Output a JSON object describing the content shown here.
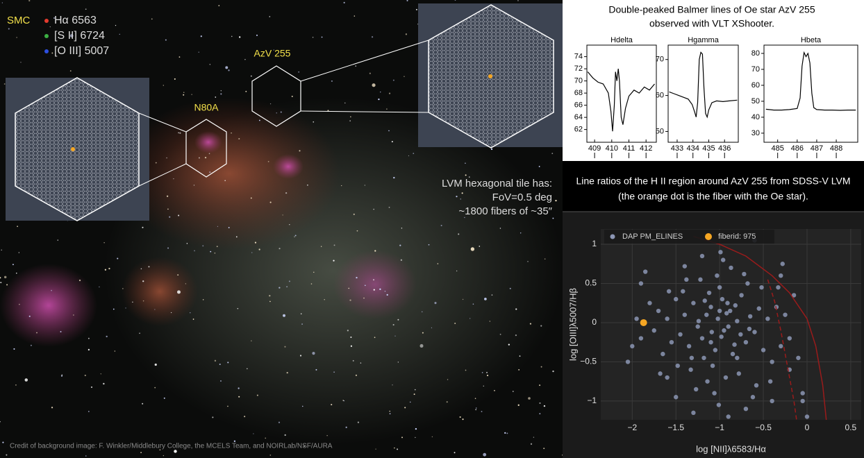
{
  "image": {
    "label": "SMC",
    "legend": [
      {
        "name": "Hα 6563",
        "color": "#e33b2e"
      },
      {
        "name": "[S II] 6724",
        "color": "#3cb043"
      },
      {
        "name": "[O III] 5007",
        "color": "#2d4fe0"
      }
    ],
    "targets": [
      "AzV 255",
      "N80A"
    ],
    "tile_note": [
      "LVM hexagonal tile has:",
      "FoV=0.5 deg",
      "~1800 fibers of ~35″"
    ],
    "credit": "Credit of background image: F. Winkler/Middlebury College, the MCELS Team, and NOIRLab/NSF/AURA"
  },
  "spectra_title": [
    "Double-peaked Balmer lines of Oe star  AzV 255",
    "observed with VLT XShooter."
  ],
  "scatter_caption": [
    "Line ratios of the H II region around AzV 255 from SDSS-V LVM",
    "(the orange dot is the fiber with the Oe star)."
  ],
  "chart_data": [
    {
      "type": "line",
      "title": "Hdelta",
      "color": "#000000",
      "x": [
        408.6,
        408.9,
        409.2,
        409.5,
        409.8,
        409.95,
        410.05,
        410.15,
        410.22,
        410.3,
        410.38,
        410.45,
        410.55,
        410.65,
        410.8,
        411.0,
        411.3,
        411.6,
        411.9,
        412.2,
        412.5
      ],
      "values": [
        71.5,
        70.5,
        69.8,
        69.5,
        68.0,
        65.0,
        61.7,
        66.0,
        71.5,
        70.0,
        72.0,
        70.0,
        64.0,
        62.8,
        65.5,
        67.5,
        68.5,
        68.0,
        69.0,
        68.5,
        69.5
      ],
      "xlim": [
        408.55,
        412.6
      ],
      "ylim": [
        59.9,
        75.9
      ],
      "xticks": [
        409,
        410,
        411,
        412
      ],
      "yticks": [
        62,
        64,
        66,
        68,
        70,
        72,
        74
      ]
    },
    {
      "type": "line",
      "title": "Hgamma",
      "color": "#000000",
      "x": [
        432.5,
        432.8,
        433.1,
        433.4,
        433.7,
        433.95,
        434.1,
        434.2,
        434.3,
        434.4,
        434.5,
        434.6,
        434.7,
        434.8,
        434.9,
        435.0,
        435.2,
        435.5,
        435.9,
        436.3,
        436.8
      ],
      "values": [
        61.0,
        60.5,
        60.0,
        59.5,
        59.0,
        57.5,
        55.5,
        54.0,
        58.0,
        70.0,
        72.0,
        71.5,
        62.0,
        55.0,
        54.0,
        56.0,
        58.0,
        58.5,
        58.3,
        58.5,
        58.7
      ],
      "xlim": [
        432.43,
        436.87
      ],
      "ylim": [
        47,
        74
      ],
      "xticks": [
        433,
        434,
        435,
        436
      ],
      "yticks": [
        50,
        60,
        70
      ]
    },
    {
      "type": "line",
      "title": "Hbeta",
      "color": "#000000",
      "x": [
        484.4,
        484.8,
        485.2,
        485.6,
        486.0,
        486.15,
        486.25,
        486.35,
        486.45,
        486.55,
        486.65,
        486.75,
        486.85,
        487.0,
        487.4,
        487.8,
        488.2,
        488.6,
        489.0
      ],
      "values": [
        45.0,
        44.5,
        44.5,
        44.8,
        45.5,
        52.0,
        72.0,
        80.5,
        78.0,
        80.0,
        74.0,
        55.0,
        46.0,
        44.8,
        44.5,
        44.5,
        44.3,
        44.5,
        44.5
      ],
      "xlim": [
        484.3,
        489.1
      ],
      "ylim": [
        24.3,
        85.2
      ],
      "xticks": [
        485,
        486,
        487,
        488
      ],
      "yticks": [
        30,
        40,
        50,
        60,
        70,
        80
      ]
    },
    {
      "type": "scatter",
      "xlabel": "log [NII]λ6583/Hα",
      "ylabel": "log [OIII]λ5007/Hβ",
      "grid": true,
      "xlim": [
        -2.36,
        0.62
      ],
      "ylim": [
        -1.24,
        1.195
      ],
      "xticks": [
        {
          "value": -2,
          "label": "−2"
        },
        {
          "value": -1.5,
          "label": "−1.5"
        },
        {
          "value": -1,
          "label": "−1"
        },
        {
          "value": -0.5,
          "label": "−0.5"
        },
        0,
        0.5
      ],
      "yticks": [
        {
          "value": -1,
          "label": "−1"
        },
        {
          "value": -0.5,
          "label": "−0.5"
        },
        0,
        0.5,
        1
      ],
      "series": [
        {
          "name": "DAP PM_ELINES",
          "color": "#8c96b4",
          "x": [
            -1.02,
            -0.95,
            -1.1,
            -0.88,
            -1.2,
            -0.8,
            -1.05,
            -0.97,
            -1.15,
            -0.9,
            -1.3,
            -0.7,
            -1.0,
            -0.85,
            -1.25,
            -0.75,
            -1.08,
            -0.92,
            -1.35,
            -0.65,
            -1.4,
            -0.6,
            -1.12,
            -0.98,
            -0.82,
            -1.18,
            -1.45,
            -0.55,
            -1.5,
            -0.5,
            -1.55,
            -0.45,
            -1.6,
            -0.4,
            -1.65,
            -0.35,
            -1.7,
            -0.3,
            -1.75,
            -0.25,
            -1.8,
            -0.2,
            -1.9,
            -0.15,
            -1.95,
            -0.1,
            -2.0,
            -0.05,
            -1.03,
            -0.93,
            -1.22,
            -0.78,
            -1.33,
            -0.68,
            -1.42,
            -0.58,
            -1.14,
            -0.87,
            -1.06,
            -0.96,
            -1.27,
            -0.72,
            -1.38,
            -0.62,
            -1.48,
            -0.52,
            -1.58,
            -0.42,
            -1.68,
            -0.33,
            -1.01,
            -0.99,
            -1.09,
            -0.91,
            -1.17,
            -0.83,
            -1.24,
            -0.76,
            -1.32,
            -0.66,
            -0.28,
            -0.05,
            -1.85,
            -2.05,
            0.0,
            -0.6,
            -1.3,
            -0.9,
            -1.2,
            -0.7,
            -1.5,
            -0.4,
            -1.0,
            -1.1,
            -0.8,
            -1.6,
            -0.3,
            -1.9,
            -0.2,
            -1.4
          ],
          "y": [
            0.05,
            -0.1,
            0.2,
            0.15,
            -0.2,
            0.02,
            -0.35,
            0.3,
            0.1,
            -0.05,
            0.25,
            -0.25,
            0.45,
            -0.4,
            -0.05,
            0.35,
            -0.55,
            0.12,
            -0.3,
            0.08,
            0.1,
            -0.12,
            0.38,
            -0.18,
            0.22,
            -0.45,
            -0.15,
            0.18,
            0.3,
            -0.35,
            -0.25,
            0.05,
            0.05,
            -0.5,
            -0.4,
            0.2,
            0.15,
            -0.3,
            -0.1,
            0.1,
            0.25,
            -0.6,
            -0.2,
            0.35,
            0.05,
            -0.45,
            -0.3,
            -0.9,
            0.6,
            -0.7,
            0.55,
            -0.65,
            -0.6,
            0.5,
            0.4,
            -0.8,
            -0.75,
            0.7,
            -0.9,
            0.8,
            -0.85,
            0.62,
            0.55,
            -0.95,
            -0.55,
            0.45,
            0.4,
            -0.75,
            -0.65,
            0.45,
            -1.05,
            0.9,
            -0.12,
            0.25,
            0.28,
            -0.28,
            0.02,
            -0.15,
            -0.45,
            -0.08,
            0.75,
            -1.0,
            0.65,
            -0.5,
            -1.2,
            1.05,
            -1.15,
            -1.2,
            0.85,
            -1.1,
            -0.95,
            -1.0,
            0.15,
            -0.25,
            -0.45,
            -0.7,
            0.6,
            0.5,
            -0.2,
            0.72
          ]
        },
        {
          "name": "fiberid: 975",
          "color": "#f5a623",
          "x": [
            -1.87
          ],
          "y": [
            0.0
          ]
        }
      ],
      "curves": [
        {
          "color": "#9a1b1b",
          "style": "solid",
          "x": [
            -1.3,
            -1.0,
            -0.7,
            -0.4,
            -0.2,
            0.0,
            0.1,
            0.18,
            0.22
          ],
          "y": [
            1.1,
            1.0,
            0.85,
            0.6,
            0.38,
            0.05,
            -0.3,
            -0.8,
            -1.24
          ]
        },
        {
          "color": "#9a1b1b",
          "style": "dashed",
          "x": [
            -0.45,
            -0.37,
            -0.3,
            -0.25,
            -0.2,
            -0.15,
            -0.12
          ],
          "y": [
            0.55,
            0.27,
            -0.1,
            -0.4,
            -0.7,
            -1.0,
            -1.24
          ]
        }
      ]
    }
  ]
}
